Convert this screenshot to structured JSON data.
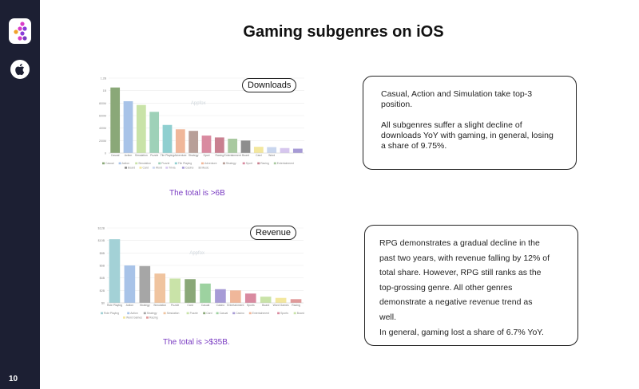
{
  "page": {
    "title": "Gaming subgenres on iOS",
    "page_number": "10"
  },
  "sidebar": {
    "logo_icon": "brand-logo-icon",
    "platform_icon": "apple-icon",
    "background": "#1c1f33"
  },
  "downloads": {
    "tag": "Downloads",
    "total": "The total is >6B",
    "watermark": "Appfox",
    "card_paragraphs": [
      "Casual, Action and Simulation take top-3 position.",
      "All subgenres suffer a slight decline of downloads YoY with gaming, in general, losing a share of 9.75%."
    ]
  },
  "revenue": {
    "tag": "Revenue",
    "total": "The total is >$35B.",
    "watermark": "Appfox",
    "card_lines": [
      "RPG demonstrates a gradual decline in the",
      "past two years, with revenue falling by 12% of",
      "total share. However, RPG still ranks as the",
      "top-grossing genre. All other genres",
      "demonstrate a negative revenue trend as",
      "well.",
      "In general, gaming lost a share of 6.7% YoY."
    ]
  },
  "chart_data": [
    {
      "type": "bar",
      "categories": [
        "Casual",
        "Action",
        "Simulation",
        "Puzzle",
        "Tile Playing",
        "Adventure",
        "Strategy",
        "Sport",
        "Racing",
        "Entertainment",
        "Board",
        "Card",
        "Word"
      ],
      "values": [
        1050,
        830,
        770,
        660,
        450,
        380,
        355,
        280,
        250,
        230,
        200,
        100,
        95
      ],
      "colors": [
        "#8aa878",
        "#a8c3e8",
        "#c9e3a8",
        "#9ed1b8",
        "#8fcfd0",
        "#f0b79a",
        "#b89f98",
        "#d98aa0",
        "#c98090",
        "#a9c9a0",
        "#8d8d8d",
        "#f3e79e",
        "#c9d6ee"
      ],
      "extra_bars": [
        {
          "value": 80,
          "color": "#d6c6ee"
        },
        {
          "value": 70,
          "color": "#a79bd6"
        }
      ],
      "ylim": [
        0,
        1200
      ],
      "yticks": [
        "0",
        "200M",
        "400M",
        "600M",
        "800M",
        "1B",
        "1.2B"
      ],
      "legend": [
        "Casual",
        "Action",
        "Simulation",
        "Puzzle",
        "Tile Playing",
        "Adventure",
        "Strategy",
        "Sport",
        "Racing",
        "Entertainment",
        "Board",
        "Card",
        "Word",
        "Trivia",
        "Casino",
        "Music"
      ],
      "grid": true
    },
    {
      "type": "bar",
      "categories": [
        "Role Playing",
        "Action",
        "Strategy",
        "Simulation",
        "Puzzle",
        "Card",
        "Casual",
        "Casino",
        "Entertainment",
        "Sports",
        "Board",
        "Word Games",
        "Racing"
      ],
      "values": [
        10.2,
        6.0,
        5.9,
        4.7,
        3.9,
        3.8,
        3.1,
        2.2,
        2.0,
        1.5,
        1.0,
        0.8,
        0.6
      ],
      "colors": [
        "#a3d1d6",
        "#a8c3e8",
        "#a6a6a6",
        "#f0c49f",
        "#c9e3a8",
        "#8aa878",
        "#9dd2a0",
        "#a79bd6",
        "#f0b79a",
        "#d98aa0",
        "#c9e3a8",
        "#f3e79e",
        "#e09a9a"
      ],
      "ylim": [
        0,
        12
      ],
      "yticks": [
        "$0",
        "$2B",
        "$4B",
        "$6B",
        "$8B",
        "$10B",
        "$12B"
      ],
      "legend": [
        "Role Playing",
        "Action",
        "Strategy",
        "Simulation",
        "Puzzle",
        "Card",
        "Casual",
        "Casino",
        "Entertainment",
        "Sports",
        "Board",
        "Word Games",
        "Racing"
      ],
      "grid": true
    }
  ]
}
